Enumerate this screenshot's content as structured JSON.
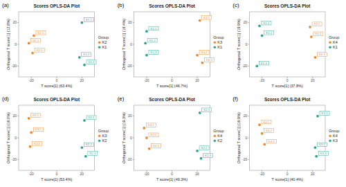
{
  "chart_data": [
    {
      "type": "scatter",
      "panel_label": "(a)",
      "title": "Scores OPLS-DA Plot",
      "x_label": "T score[1] (63.4%)",
      "y_label": "Orthogonal T score[1] (12.8%)",
      "legend_title": "Group",
      "legend": "right",
      "xlim": [
        -30,
        30
      ],
      "ylim": [
        -30,
        30
      ],
      "xticks": [
        -20,
        0,
        20
      ],
      "yticks": [
        -20,
        0,
        20
      ],
      "grid": false,
      "series": [
        {
          "name": "K2",
          "color": "#f0892e",
          "marker": "circle",
          "x": [
            -18,
            -22,
            -19
          ],
          "values": [
            8,
            1,
            -8
          ],
          "labels": [
            "K2.1",
            "K2.2",
            "K2.3"
          ]
        },
        {
          "name": "K1",
          "color": "#2aa68f",
          "marker": "circle",
          "x": [
            20,
            18,
            22
          ],
          "values": [
            20,
            -12,
            -19
          ],
          "labels": [
            "K1.1",
            "K1.2",
            "K1.3"
          ]
        }
      ]
    },
    {
      "type": "scatter",
      "panel_label": "(b)",
      "title": "Scores OPLS-DA Plot",
      "x_label": "T score[1] (46.7%)",
      "y_label": "Orthogonal T score[1] (18.4%)",
      "legend_title": "Group",
      "legend": "right",
      "xlim": [
        -30,
        30
      ],
      "ylim": [
        -30,
        30
      ],
      "xticks": [
        -20,
        0,
        20
      ],
      "yticks": [
        -20,
        0,
        20
      ],
      "grid": false,
      "series": [
        {
          "name": "K3",
          "color": "#f0892e",
          "marker": "circle",
          "x": [
            22,
            20,
            24
          ],
          "values": [
            22,
            -10,
            -17
          ],
          "labels": [
            "K3.1",
            "K3.2",
            "K3.3"
          ]
        },
        {
          "name": "K1",
          "color": "#2aa68f",
          "marker": "circle",
          "x": [
            -20,
            -21,
            -20
          ],
          "values": [
            12,
            1,
            -10
          ],
          "labels": [
            "K1.1",
            "K1.2",
            "K1.3"
          ]
        }
      ]
    },
    {
      "type": "scatter",
      "panel_label": "(c)",
      "title": "Scores OPLS-DA Plot",
      "x_label": "T score[1] (37.8%)",
      "y_label": "Orthogonal T score[1] (19.9%)",
      "legend_title": "Group",
      "legend": "right",
      "xlim": [
        -30,
        30
      ],
      "ylim": [
        -30,
        30
      ],
      "xticks": [
        -20,
        0,
        20
      ],
      "yticks": [
        -20,
        0,
        20
      ],
      "grid": false,
      "series": [
        {
          "name": "K4",
          "color": "#f0892e",
          "marker": "circle",
          "x": [
            18,
            19,
            22
          ],
          "values": [
            16,
            7,
            -12
          ],
          "labels": [
            "K4.1",
            "K4.2",
            "K4.3"
          ]
        },
        {
          "name": "K1",
          "color": "#2aa68f",
          "marker": "circle",
          "x": [
            -22,
            -20,
            -24
          ],
          "values": [
            17,
            8,
            -20
          ],
          "labels": [
            "K1.1",
            "K1.2",
            "K1.3"
          ]
        }
      ]
    },
    {
      "type": "scatter",
      "panel_label": "(d)",
      "title": "Scores OPLS-DA Plot",
      "x_label": "T score[1] (53.4%)",
      "y_label": "Orthogonal T score[1] (16.0%)",
      "legend_title": "Group",
      "legend": "right",
      "xlim": [
        -30,
        30
      ],
      "ylim": [
        -30,
        30
      ],
      "xticks": [
        -20,
        0,
        20
      ],
      "yticks": [
        -20,
        0,
        20
      ],
      "grid": false,
      "series": [
        {
          "name": "K3",
          "color": "#f0892e",
          "marker": "circle",
          "x": [
            -22,
            -20,
            -21
          ],
          "values": [
            18,
            5,
            -8
          ],
          "labels": [
            "K3.1",
            "K3.2",
            "K3.3"
          ]
        },
        {
          "name": "K2",
          "color": "#2aa68f",
          "marker": "circle",
          "x": [
            22,
            20,
            23
          ],
          "values": [
            16,
            -9,
            -17
          ],
          "labels": [
            "K2.1",
            "K2.2",
            "K2.3"
          ]
        }
      ]
    },
    {
      "type": "scatter",
      "panel_label": "(e)",
      "title": "Scores OPLS-DA Plot",
      "x_label": "T score[1] (49.3%)",
      "y_label": "Orthogonal T score[1] (19.3%)",
      "legend_title": "Group",
      "legend": "right",
      "xlim": [
        -30,
        30
      ],
      "ylim": [
        -30,
        30
      ],
      "xticks": [
        -20,
        0,
        20
      ],
      "yticks": [
        -20,
        0,
        20
      ],
      "grid": false,
      "series": [
        {
          "name": "K4",
          "color": "#f0892e",
          "marker": "circle",
          "x": [
            -22,
            -20,
            -18
          ],
          "values": [
            9,
            0,
            -10
          ],
          "labels": [
            "K4.1",
            "K4.2",
            "K4.3"
          ]
        },
        {
          "name": "K2",
          "color": "#2aa68f",
          "marker": "circle",
          "x": [
            22,
            20,
            23
          ],
          "values": [
            23,
            -12,
            -19
          ],
          "labels": [
            "K2.1",
            "K2.2",
            "K2.3"
          ]
        }
      ]
    },
    {
      "type": "scatter",
      "panel_label": "(f)",
      "title": "Scores OPLS-DA Plot",
      "x_label": "T score[1] (40.4%)",
      "y_label": "Orthogonal T score[1] (16.9%)",
      "legend_title": "Group",
      "legend": "right",
      "xlim": [
        -30,
        30
      ],
      "ylim": [
        -30,
        30
      ],
      "xticks": [
        -20,
        0,
        20
      ],
      "yticks": [
        -20,
        0,
        20
      ],
      "grid": false,
      "series": [
        {
          "name": "K4",
          "color": "#f0892e",
          "marker": "circle",
          "x": [
            -22,
            -20,
            -18
          ],
          "values": [
            12,
            4,
            -6
          ],
          "labels": [
            "K4.1",
            "K4.2",
            "K4.3"
          ]
        },
        {
          "name": "K3",
          "color": "#2aa68f",
          "marker": "circle",
          "x": [
            24,
            22,
            23
          ],
          "values": [
            20,
            -9,
            -17
          ],
          "labels": [
            "K3.1",
            "K3.2",
            "K3.3"
          ]
        }
      ]
    }
  ]
}
